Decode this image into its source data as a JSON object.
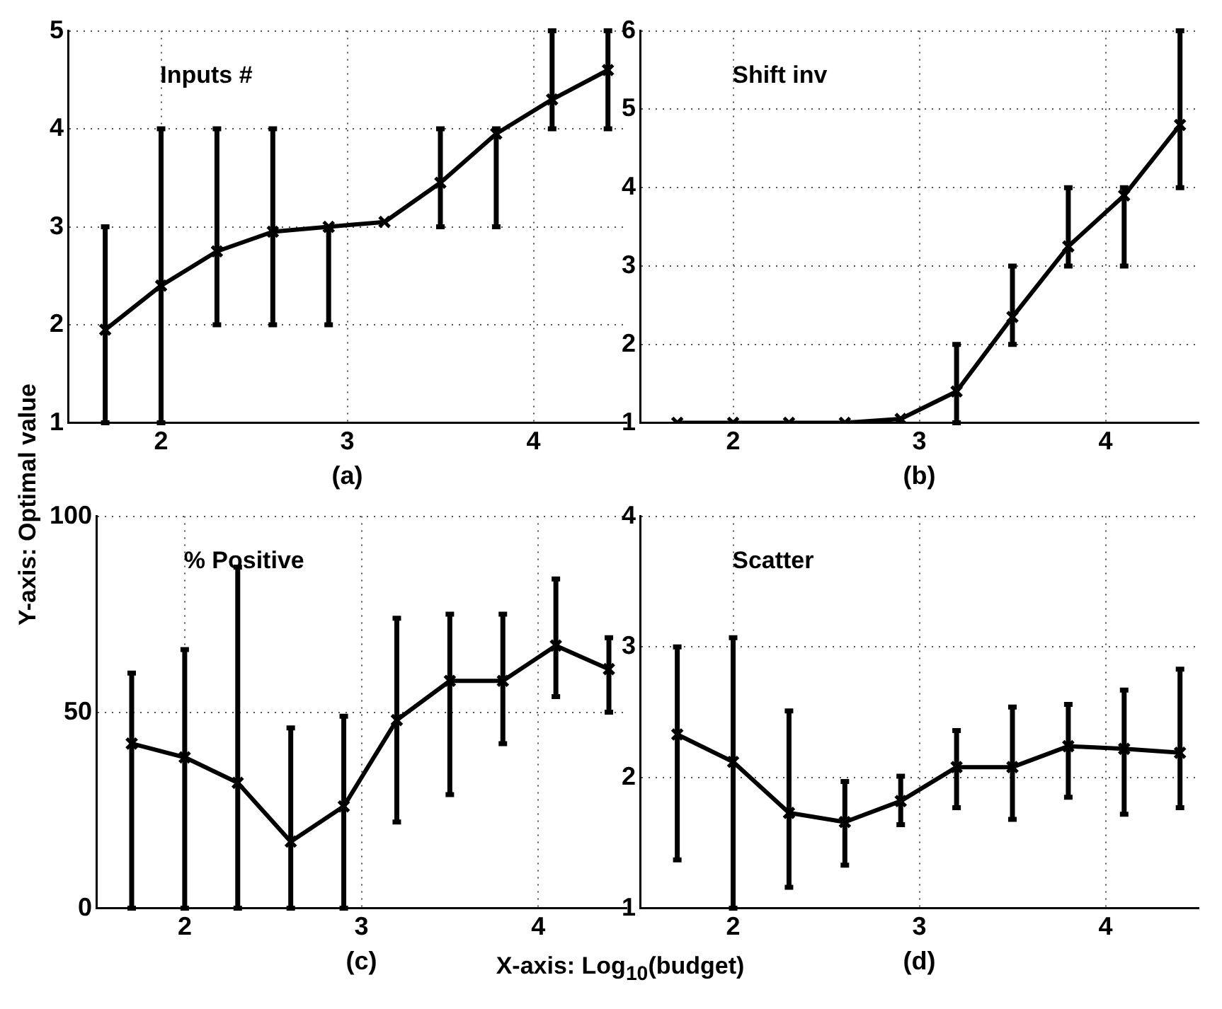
{
  "chart_data": [
    {
      "type": "line",
      "title": "Inputs #",
      "xlabel": "(a)",
      "annotations": [
        "Y-axis: Optimal value"
      ],
      "x": [
        1.7,
        2.0,
        2.3,
        2.6,
        2.9,
        3.2,
        3.5,
        3.8,
        4.1,
        4.4
      ],
      "xlim": [
        1.5,
        4.5
      ],
      "xticks": [
        2,
        3,
        4
      ],
      "ylim": [
        1,
        5
      ],
      "yticks": [
        1,
        2,
        3,
        4,
        5
      ],
      "grid": true,
      "marker": "cross",
      "line_style": "solid",
      "series": [
        {
          "color": "#000000",
          "values": [
            1.95,
            2.4,
            2.75,
            2.95,
            3.0,
            3.05,
            3.45,
            3.95,
            4.3,
            4.6
          ],
          "errors": [
            [
              1,
              3
            ],
            [
              1,
              4
            ],
            [
              2,
              4
            ],
            [
              2,
              4
            ],
            [
              2,
              3
            ],
            null,
            [
              3,
              4
            ],
            [
              3,
              4
            ],
            [
              4,
              5
            ],
            [
              4,
              5
            ]
          ]
        }
      ]
    },
    {
      "type": "line",
      "title": "Shift inv",
      "xlabel": "(b)",
      "x": [
        1.7,
        2.0,
        2.3,
        2.6,
        2.9,
        3.2,
        3.5,
        3.8,
        4.1,
        4.4
      ],
      "xlim": [
        1.5,
        4.5
      ],
      "xticks": [
        2,
        3,
        4
      ],
      "ylim": [
        1,
        6
      ],
      "yticks": [
        1,
        2,
        3,
        4,
        5,
        6
      ],
      "grid": true,
      "marker": "cross",
      "line_style": "solid",
      "series": [
        {
          "color": "#000000",
          "values": [
            1,
            1,
            1,
            1,
            1.05,
            1.4,
            2.35,
            3.25,
            3.9,
            4.8
          ],
          "errors": [
            null,
            null,
            null,
            null,
            null,
            [
              1,
              2
            ],
            [
              2,
              3
            ],
            [
              3,
              4
            ],
            [
              3,
              4
            ],
            [
              4,
              6
            ]
          ]
        }
      ]
    },
    {
      "type": "line",
      "title": "% Positive",
      "xlabel": "(c)",
      "annotations": [
        "X-axis: Log$_{10}$(budget)"
      ],
      "x": [
        1.7,
        2.0,
        2.3,
        2.6,
        2.9,
        3.2,
        3.5,
        3.8,
        4.1,
        4.4
      ],
      "xlim": [
        1.5,
        4.5
      ],
      "xticks": [
        2,
        3,
        4
      ],
      "ylim": [
        0,
        100
      ],
      "yticks": [
        0,
        50,
        100
      ],
      "grid": true,
      "marker": "cross",
      "line_style": "solid",
      "series": [
        {
          "color": "#000000",
          "values": [
            42,
            38.5,
            32,
            17,
            26,
            48,
            58,
            58,
            67,
            61
          ],
          "errors": [
            [
              0,
              60
            ],
            [
              0,
              66
            ],
            [
              0,
              87
            ],
            [
              0,
              46
            ],
            [
              0,
              49
            ],
            [
              22,
              74
            ],
            [
              29,
              75
            ],
            [
              42,
              75
            ],
            [
              54,
              84
            ],
            [
              50,
              69
            ]
          ]
        }
      ]
    },
    {
      "type": "line",
      "title": "Scatter",
      "xlabel": "(d)",
      "x": [
        1.7,
        2.0,
        2.3,
        2.6,
        2.9,
        3.2,
        3.5,
        3.8,
        4.1,
        4.4
      ],
      "xlim": [
        1.5,
        4.5
      ],
      "xticks": [
        2,
        3,
        4
      ],
      "ylim": [
        1,
        4
      ],
      "yticks": [
        1,
        2,
        3,
        4
      ],
      "grid": true,
      "marker": "cross",
      "line_style": "solid",
      "series": [
        {
          "color": "#000000",
          "values": [
            2.33,
            2.12,
            1.73,
            1.66,
            1.82,
            2.08,
            2.08,
            2.24,
            2.22,
            2.19
          ],
          "errors": [
            [
              1.37,
              3.0
            ],
            [
              1.0,
              3.07
            ],
            [
              1.16,
              2.51
            ],
            [
              1.33,
              1.97
            ],
            [
              1.64,
              2.01
            ],
            [
              1.77,
              2.36
            ],
            [
              1.68,
              2.54
            ],
            [
              1.85,
              2.56
            ],
            [
              1.72,
              2.67
            ],
            [
              1.77,
              2.83
            ]
          ]
        }
      ]
    }
  ]
}
